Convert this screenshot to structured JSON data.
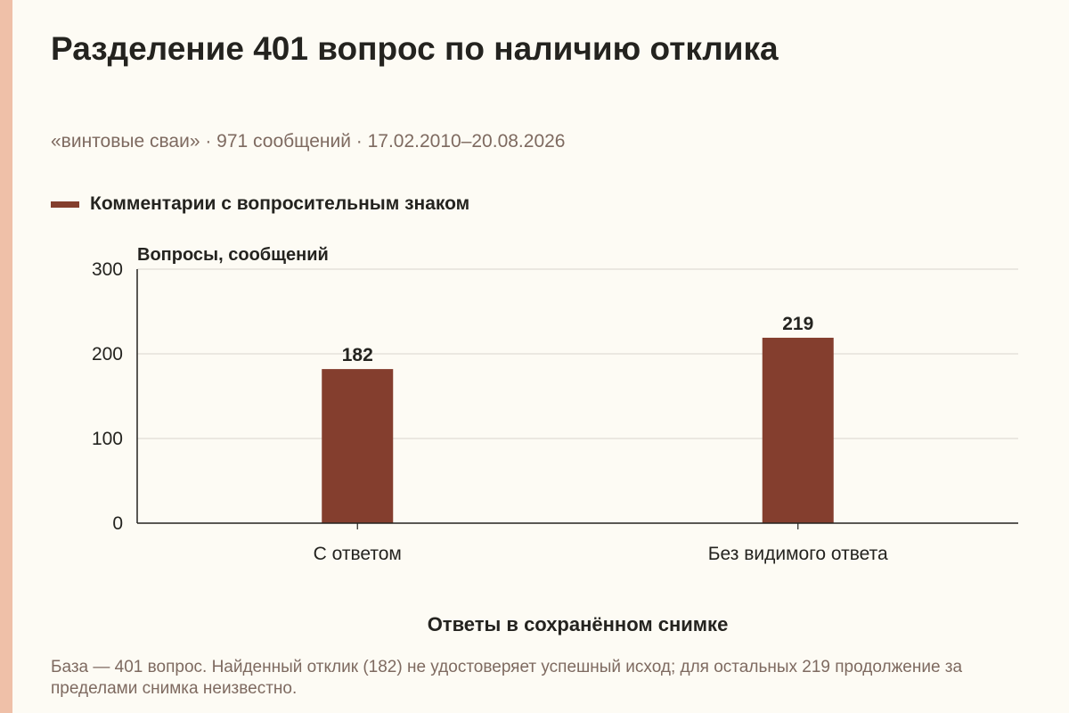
{
  "header": {
    "title": "Разделение 401 вопрос по наличию отклика",
    "subtitle": "«винтовые сваи» · 971 сообщений · 17.02.2010–20.08.2026"
  },
  "chart_data": {
    "type": "bar",
    "categories": [
      "С ответом",
      "Без видимого ответа"
    ],
    "series": [
      {
        "name": "Комментарии с вопросительным знаком",
        "values": [
          182,
          219
        ]
      }
    ],
    "data_labels": [
      "182",
      "219"
    ],
    "ylabel": "Вопросы, сообщений",
    "xlabel": "Ответы в сохранённом снимке",
    "ylim": [
      0,
      300
    ],
    "yticks": [
      0,
      100,
      200,
      300
    ],
    "ytick_labels": [
      "0",
      "100",
      "200",
      "300"
    ],
    "grid": true,
    "legend_position": "top-left",
    "bar_color": "#843e2e",
    "grid_color": "#d9d6ce",
    "axis_color": "#24231f"
  },
  "footnote": "База — 401 вопрос. Найденный отклик (182) не удостоверяет успешный исход; для остальных 219 продолжение за пределами снимка неизвестно."
}
